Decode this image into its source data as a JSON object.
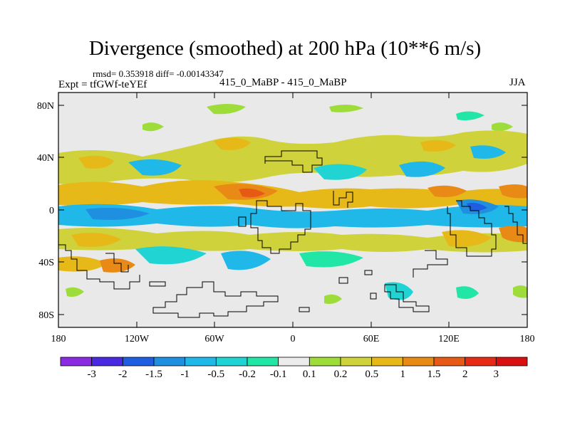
{
  "title": "Divergence (smoothed) at 200 hPa (10**6 m/s)",
  "stats": "rmsd= 0.353918  diff= -0.00143347",
  "expt": "Expt = tfGWf-teYEf",
  "center_label": "415_0_MaBP - 415_0_MaBP",
  "season": "JJA",
  "y_ticks": [
    "80N",
    "40N",
    "0",
    "40S",
    "80S"
  ],
  "x_ticks": [
    "180",
    "120W",
    "60W",
    "0",
    "60E",
    "120E",
    "180"
  ],
  "colorbar": {
    "labels": [
      "-3",
      "-2",
      "-1.5",
      "-1",
      "-0.5",
      "-0.2",
      "-0.1",
      "0.1",
      "0.2",
      "0.5",
      "1",
      "1.5",
      "2",
      "3"
    ],
    "colors": [
      "#8a2be2",
      "#4a2ae0",
      "#1f5ee0",
      "#1f8fe0",
      "#1fb8e8",
      "#20d4d4",
      "#22e6a6",
      "#ececec",
      "#9edc3a",
      "#cfd23a",
      "#e6b818",
      "#e98a16",
      "#e65a16",
      "#e62a16",
      "#d81010"
    ]
  },
  "map_colors": {
    "background": "#e9e9e9",
    "neg_weak": "#22e6a6",
    "neg_mid": "#20d4d4",
    "neg_strong": "#1fb8e8",
    "neg_deep": "#1f8fe0",
    "pos_weak": "#9edc3a",
    "pos_mid": "#cfd23a",
    "pos_strong": "#e6b818",
    "pos_deep": "#e98a16",
    "pos_peak": "#e65a16"
  }
}
